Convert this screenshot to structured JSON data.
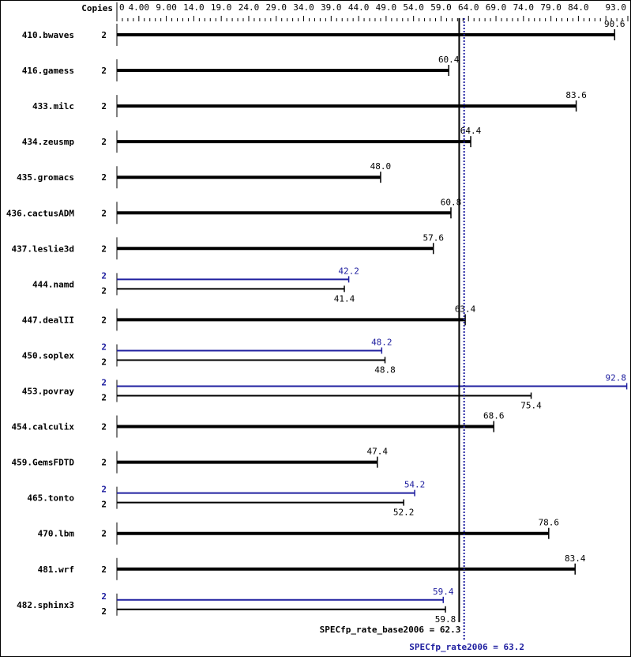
{
  "chart_data": {
    "type": "bar",
    "orientation": "horizontal",
    "copies_header": "Copies",
    "xlim": [
      0,
      93.0
    ],
    "tick_labels": [
      "0",
      "4.00",
      "9.00",
      "14.0",
      "19.0",
      "24.0",
      "29.0",
      "34.0",
      "39.0",
      "44.0",
      "49.0",
      "54.0",
      "59.0",
      "64.0",
      "69.0",
      "74.0",
      "79.0",
      "84.0",
      "93.0"
    ],
    "tick_values": [
      0,
      4,
      9,
      14,
      19,
      24,
      29,
      34,
      39,
      44,
      49,
      54,
      59,
      64,
      69,
      74,
      79,
      84,
      93
    ],
    "colors": {
      "base": "#000000",
      "peak": "#2020a0"
    },
    "benchmarks": [
      {
        "name": "410.bwaves",
        "copies": "2",
        "base": 90.6
      },
      {
        "name": "416.gamess",
        "copies": "2",
        "base": 60.4
      },
      {
        "name": "433.milc",
        "copies": "2",
        "base": 83.6
      },
      {
        "name": "434.zeusmp",
        "copies": "2",
        "base": 64.4
      },
      {
        "name": "435.gromacs",
        "copies": "2",
        "base": 48.0
      },
      {
        "name": "436.cactusADM",
        "copies": "2",
        "base": 60.8
      },
      {
        "name": "437.leslie3d",
        "copies": "2",
        "base": 57.6
      },
      {
        "name": "444.namd",
        "copies": "2",
        "peak_copies": "2",
        "base": 41.4,
        "peak": 42.2
      },
      {
        "name": "447.dealII",
        "copies": "2",
        "base": 63.4
      },
      {
        "name": "450.soplex",
        "copies": "2",
        "peak_copies": "2",
        "base": 48.8,
        "peak": 48.2
      },
      {
        "name": "453.povray",
        "copies": "2",
        "peak_copies": "2",
        "base": 75.4,
        "peak": 92.8
      },
      {
        "name": "454.calculix",
        "copies": "2",
        "base": 68.6
      },
      {
        "name": "459.GemsFDTD",
        "copies": "2",
        "base": 47.4
      },
      {
        "name": "465.tonto",
        "copies": "2",
        "peak_copies": "2",
        "base": 52.2,
        "peak": 54.2
      },
      {
        "name": "470.lbm",
        "copies": "2",
        "base": 78.6
      },
      {
        "name": "481.wrf",
        "copies": "2",
        "base": 83.4
      },
      {
        "name": "482.sphinx3",
        "copies": "2",
        "peak_copies": "2",
        "base": 59.8,
        "peak": 59.4
      }
    ],
    "summary": {
      "base_label": "SPECfp_rate_base2006 = 62.3",
      "base_value": 62.3,
      "peak_label": "SPECfp_rate2006 = 63.2",
      "peak_value": 63.2
    }
  }
}
